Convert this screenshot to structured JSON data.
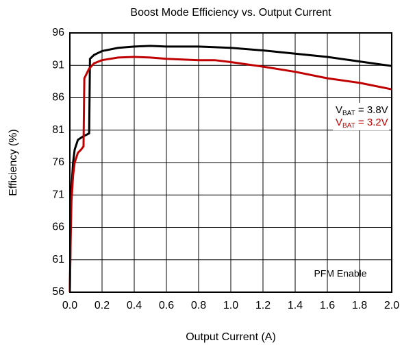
{
  "chart_data": {
    "type": "line",
    "title": "Boost Mode Efficiency vs. Output Current",
    "x_label": "Output Current (A)",
    "y_label": "Efficiency (%)",
    "annotation": "PFM Enable",
    "xlim": [
      0,
      2
    ],
    "ylim": [
      56,
      96
    ],
    "xticks": [
      {
        "value": 0,
        "label": "0.0"
      },
      0.2,
      0.4,
      0.6,
      0.8,
      {
        "value": 1,
        "label": "1.0"
      },
      1.2,
      1.4,
      1.6,
      1.8,
      {
        "value": 2,
        "label": "2.0"
      }
    ],
    "yticks": [
      56,
      61,
      66,
      71,
      76,
      81,
      86,
      91,
      96
    ],
    "grid": true,
    "series": [
      {
        "name": [
          "V",
          "BAT",
          " = 3.8V"
        ],
        "color": "#000000",
        "x": [
          0,
          0.005,
          0.01,
          0.02,
          0.03,
          0.05,
          0.08,
          0.12,
          0.125,
          0.15,
          0.2,
          0.3,
          0.4,
          0.5,
          0.6,
          0.8,
          1.0,
          1.2,
          1.4,
          1.6,
          1.8,
          2.0
        ],
        "values": [
          56,
          66,
          72,
          76,
          78,
          79.5,
          80,
          80.5,
          92,
          92.6,
          93.2,
          93.7,
          93.9,
          94,
          93.9,
          93.9,
          93.7,
          93.3,
          92.8,
          92.3,
          91.6,
          90.9
        ]
      },
      {
        "name": [
          "V",
          "BAT",
          " = 3.2V"
        ],
        "color": "#c00000",
        "x": [
          0,
          0.005,
          0.01,
          0.02,
          0.03,
          0.05,
          0.07,
          0.085,
          0.09,
          0.12,
          0.15,
          0.2,
          0.3,
          0.4,
          0.5,
          0.6,
          0.8,
          0.9,
          1.0,
          1.2,
          1.4,
          1.6,
          1.8,
          2.0
        ],
        "values": [
          56,
          64,
          70,
          74,
          76,
          77.5,
          78,
          78.5,
          89,
          90.5,
          91.3,
          91.8,
          92.2,
          92.3,
          92.2,
          92,
          91.8,
          91.8,
          91.5,
          90.8,
          90,
          89,
          88.3,
          87.3
        ]
      }
    ]
  }
}
